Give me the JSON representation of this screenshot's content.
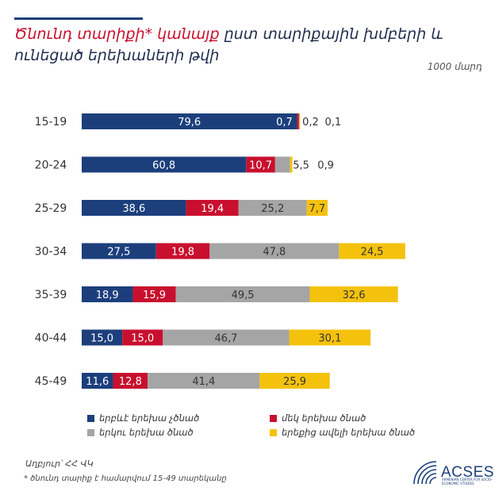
{
  "header": {
    "title_red": "Ծնունդ տարիքի* կանայք",
    "title_rest": "ըստ տարիքային խմբերի և ունեցած երեխաների թվի",
    "unit": "1000 մարդ"
  },
  "chart_data": {
    "type": "bar",
    "orientation": "horizontal",
    "stacked": true,
    "categories": [
      "15-19",
      "20-24",
      "25-29",
      "30-34",
      "35-39",
      "40-44",
      "45-49"
    ],
    "series": [
      {
        "name": "երբևէ երեխա չծնած",
        "color": "#1c3f7c",
        "values": [
          79.6,
          60.8,
          38.6,
          27.5,
          18.9,
          15.0,
          11.6
        ],
        "labels": [
          "79,6",
          "60,8",
          "38,6",
          "27,5",
          "18,9",
          "15,0",
          "11,6"
        ]
      },
      {
        "name": "մեկ երեխա ծնած",
        "color": "#c8102e",
        "values": [
          0.7,
          10.7,
          19.4,
          19.8,
          15.9,
          15.0,
          12.8
        ],
        "labels": [
          "0,7",
          "10,7",
          "19,4",
          "19,8",
          "15,9",
          "15,0",
          "12,8"
        ]
      },
      {
        "name": "երկու երեխա ծնած",
        "color": "#a5a5a5",
        "values": [
          0.2,
          5.5,
          25.2,
          47.8,
          49.5,
          46.7,
          41.4
        ],
        "labels": [
          "0,2",
          "5,5",
          "25,2",
          "47,8",
          "49,5",
          "46,7",
          "41,4"
        ]
      },
      {
        "name": "երեքից ավելի երեխա ծնած",
        "color": "#f4c20d",
        "values": [
          0.1,
          0.9,
          7.7,
          24.5,
          32.6,
          30.1,
          25.9
        ],
        "labels": [
          "0,1",
          "0,9",
          "7,7",
          "24,5",
          "32,6",
          "30,1",
          "25,9"
        ]
      }
    ],
    "legend_position": "bottom",
    "grid": false
  },
  "footer": {
    "source": "Աղբյուր՝ ՀՀ ՎԿ",
    "footnote": "* ծնունդ տարիք է համարվում 15-49 տարեկանը",
    "logo": "ACSES",
    "logo_sub": "ARMENIAN CENTER FOR SOCIO-ECONOMIC STUDIES"
  }
}
